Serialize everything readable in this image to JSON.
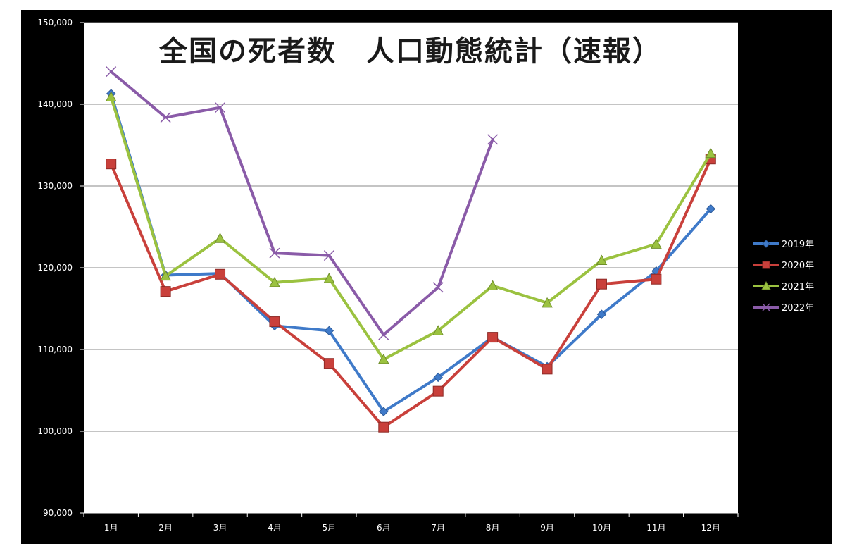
{
  "chart_data": {
    "type": "line",
    "title": "全国の死者数　人口動態統計（速報）",
    "xlabel": "",
    "ylabel": "",
    "categories": [
      "1月",
      "2月",
      "3月",
      "4月",
      "5月",
      "6月",
      "7月",
      "8月",
      "9月",
      "10月",
      "11月",
      "12月"
    ],
    "ylim": [
      90000,
      150000
    ],
    "yticks": [
      90000,
      100000,
      110000,
      120000,
      130000,
      140000,
      150000
    ],
    "ytick_labels": [
      "90,000",
      "100,000",
      "110,000",
      "120,000",
      "130,000",
      "140,000",
      "150,000"
    ],
    "grid": true,
    "legend_position": "right",
    "series": [
      {
        "name": "2019年",
        "color": "#3f7ac9",
        "marker": "diamond",
        "values": [
          141300,
          119100,
          119300,
          112900,
          112300,
          102400,
          106600,
          111500,
          107900,
          114300,
          119600,
          127200
        ]
      },
      {
        "name": "2020年",
        "color": "#c9403b",
        "marker": "square",
        "values": [
          132700,
          117100,
          119200,
          113400,
          108300,
          100500,
          104900,
          111500,
          107600,
          118000,
          118600,
          133300
        ]
      },
      {
        "name": "2021年",
        "color": "#9bc240",
        "marker": "triangle",
        "values": [
          140900,
          119000,
          123600,
          118200,
          118700,
          108800,
          112300,
          117800,
          115700,
          120900,
          122900,
          134000
        ]
      },
      {
        "name": "2022年",
        "color": "#8a5ba8",
        "marker": "x",
        "values": [
          144000,
          138400,
          139600,
          121800,
          121500,
          111800,
          117600,
          135700,
          null,
          null,
          null,
          null
        ]
      }
    ]
  }
}
